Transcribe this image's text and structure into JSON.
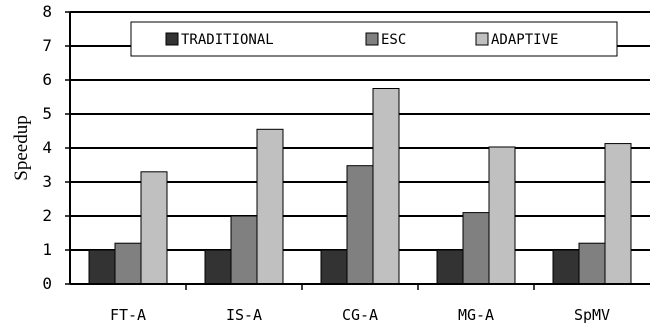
{
  "chart_data": {
    "type": "bar",
    "title": "",
    "xlabel": "",
    "ylabel": "Speedup",
    "ylim": [
      0,
      8
    ],
    "yticks": [
      "0",
      "1",
      "2",
      "3",
      "4",
      "5",
      "6",
      "7",
      "8"
    ],
    "grid": true,
    "legend_position": "top",
    "categories": [
      "FT-A",
      "IS-A",
      "CG-A",
      "MG-A",
      "SpMV"
    ],
    "series": [
      {
        "name": "TRADITIONAL",
        "color": "#333333",
        "values": [
          1,
          1,
          1,
          1,
          1
        ]
      },
      {
        "name": "ESC",
        "color": "#808080",
        "values": [
          1.2,
          2.0,
          3.48,
          2.1,
          1.2
        ]
      },
      {
        "name": "ADAPTIVE",
        "color": "#c0c0c0",
        "values": [
          3.3,
          4.55,
          5.75,
          4.03,
          4.13
        ]
      }
    ]
  }
}
